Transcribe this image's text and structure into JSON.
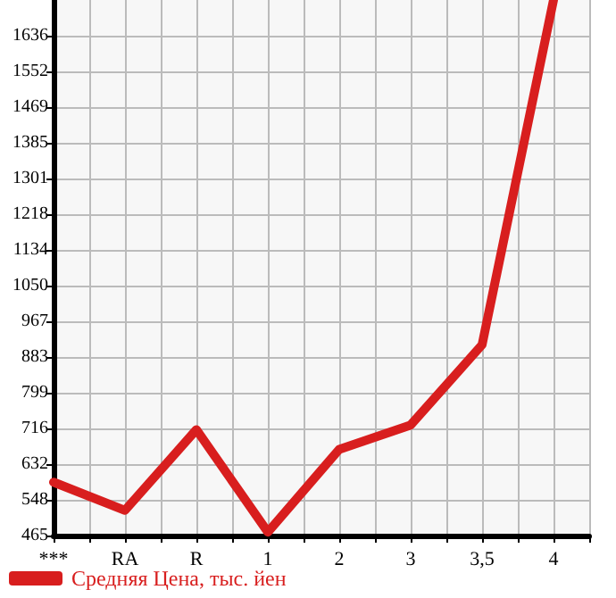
{
  "chart_data": {
    "type": "line",
    "categories": [
      "***",
      "RA",
      "R",
      "1",
      "2",
      "3",
      "3,5",
      "4"
    ],
    "series": [
      {
        "name": "Средняя Цена, тыс. йен",
        "color": "#d81e1e",
        "values": [
          590,
          524,
          713,
          473,
          667,
          724,
          912,
          1720
        ]
      }
    ],
    "ylim": [
      465,
      1720
    ],
    "yticks": [
      465,
      548,
      632,
      716,
      799,
      883,
      967,
      1050,
      1134,
      1218,
      1301,
      1385,
      1469,
      1552,
      1636
    ],
    "grid": true,
    "legend": "bottom left",
    "marker": "none",
    "line_style": "solid"
  }
}
